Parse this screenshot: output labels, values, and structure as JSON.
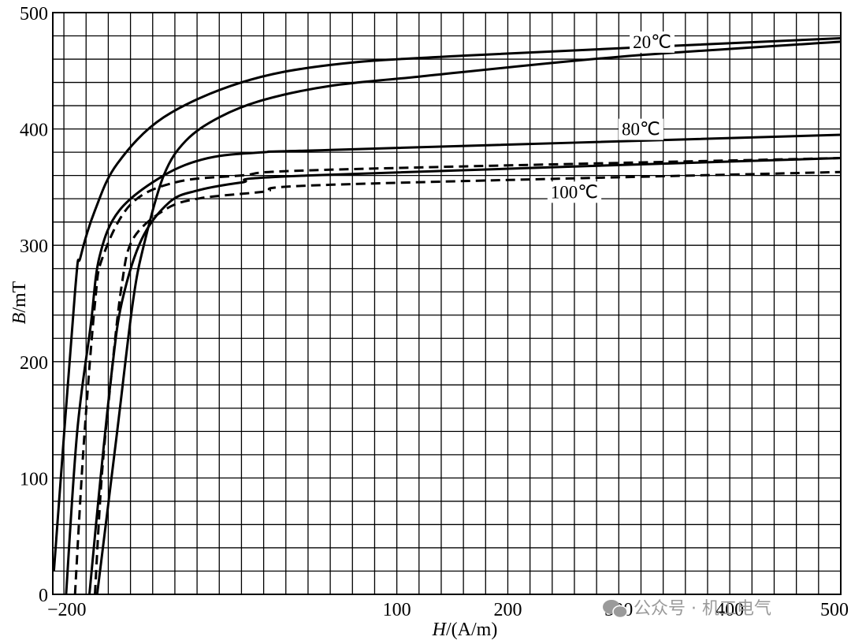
{
  "chart_data": {
    "type": "line",
    "title": "",
    "xlabel": {
      "var": "H",
      "unit": "/(A/m)"
    },
    "ylabel": {
      "var": "B",
      "unit": "/mT"
    },
    "xlim": [
      -210,
      500
    ],
    "ylim": [
      0,
      500
    ],
    "x_tick_labels": [
      "−200",
      "100",
      "200",
      "300",
      "400",
      "500"
    ],
    "x_tick_values": [
      -200,
      100,
      200,
      300,
      400,
      500
    ],
    "y_tick_labels": [
      "0",
      "100",
      "200",
      "300",
      "400",
      "500"
    ],
    "y_tick_values": [
      0,
      100,
      200,
      300,
      400,
      500
    ],
    "grid": true,
    "grid_x_step": 20,
    "grid_y_step": 20,
    "legend": "none",
    "annotations": [
      {
        "text": "20℃",
        "x": 330,
        "y": 475
      },
      {
        "text": "80℃",
        "x": 320,
        "y": 400
      },
      {
        "text": "100℃",
        "x": 260,
        "y": 346
      }
    ],
    "series": [
      {
        "group": "20℃",
        "style": "solid",
        "branch": "left",
        "x": [
          -209,
          -190,
          -185,
          -172,
          -152,
          -110,
          -40,
          40,
          160,
          500
        ],
        "y": [
          20,
          260,
          290,
          330,
          370,
          410,
          440,
          455,
          463,
          478
        ]
      },
      {
        "group": "20℃",
        "style": "solid",
        "branch": "right",
        "x": [
          -170,
          -152,
          -138,
          -128,
          -110,
          -90,
          -60,
          -20,
          40,
          120,
          300,
          500
        ],
        "y": [
          0,
          140,
          250,
          300,
          360,
          390,
          410,
          425,
          437,
          445,
          462,
          475
        ]
      },
      {
        "group": "80℃",
        "style": "solid",
        "branch": "left",
        "x": [
          -198,
          -188,
          -176,
          -168,
          -150,
          -110,
          -70,
          -20,
          40,
          500
        ],
        "y": [
          0,
          140,
          230,
          290,
          330,
          360,
          375,
          380,
          382,
          395
        ]
      },
      {
        "group": "80℃",
        "style": "solid",
        "branch": "right",
        "x": [
          -177,
          -167,
          -157,
          -148,
          -130,
          -105,
          -80,
          -40,
          20,
          500
        ],
        "y": [
          0,
          100,
          190,
          250,
          305,
          337,
          347,
          354,
          360,
          375
        ]
      },
      {
        "group": "100℃",
        "style": "dashed",
        "branch": "left",
        "x": [
          -190,
          -182,
          -172,
          -165,
          -140,
          -100,
          -40,
          40,
          500
        ],
        "y": [
          0,
          130,
          250,
          290,
          335,
          354,
          360,
          365,
          375
        ]
      },
      {
        "group": "100℃",
        "style": "dashed",
        "branch": "right",
        "x": [
          -172,
          -166,
          -157,
          -148,
          -138,
          -110,
          -80,
          -20,
          40,
          500
        ],
        "y": [
          0,
          100,
          190,
          265,
          305,
          330,
          340,
          346,
          352,
          363
        ]
      }
    ]
  },
  "watermark": "公众号 · 机工电气"
}
